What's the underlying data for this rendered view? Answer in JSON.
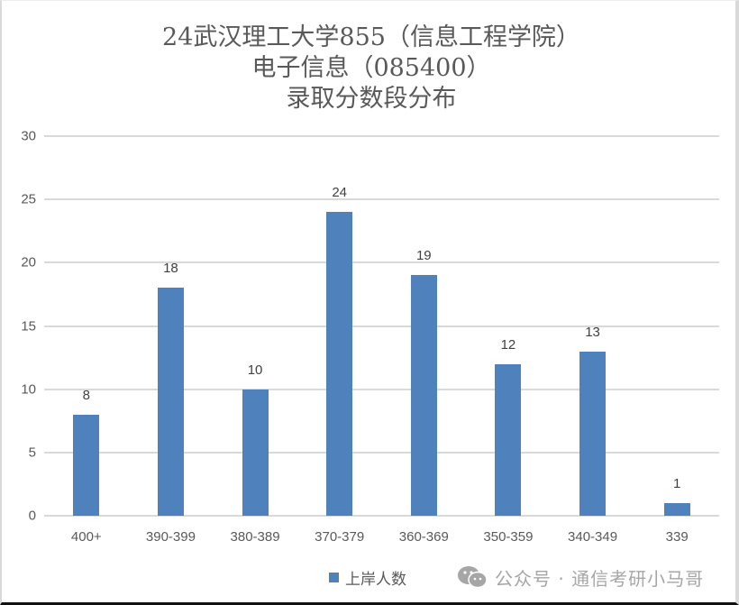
{
  "chart_data": {
    "type": "bar",
    "title": "24武汉理工大学855（信息工程学院） 电子信息（085400） 录取分数段分布",
    "title_lines": [
      "24武汉理工大学855（信息工程学院）",
      "电子信息（085400）",
      "录取分数段分布"
    ],
    "xlabel": "",
    "ylabel": "",
    "categories": [
      "400+",
      "390-399",
      "380-389",
      "370-379",
      "360-369",
      "350-359",
      "340-349",
      "339"
    ],
    "series": [
      {
        "name": "上岸人数",
        "values": [
          8,
          18,
          10,
          24,
          19,
          12,
          13,
          1
        ],
        "color": "#4f81bd"
      }
    ],
    "ylim": [
      0,
      30
    ],
    "yticks": [
      "0",
      "5",
      "10",
      "15",
      "20",
      "25",
      "30"
    ],
    "data_labels": [
      "8",
      "18",
      "10",
      "24",
      "19",
      "12",
      "13",
      "1"
    ],
    "grid": true,
    "legend_position": "bottom"
  },
  "legend": {
    "label": "上岸人数"
  },
  "watermark": {
    "icon": "wechat-icon",
    "text": "公众号 · 通信考研小马哥"
  },
  "colors": {
    "bar": "#4f81bd",
    "grid": "#d9d9d9",
    "text": "#595959"
  }
}
